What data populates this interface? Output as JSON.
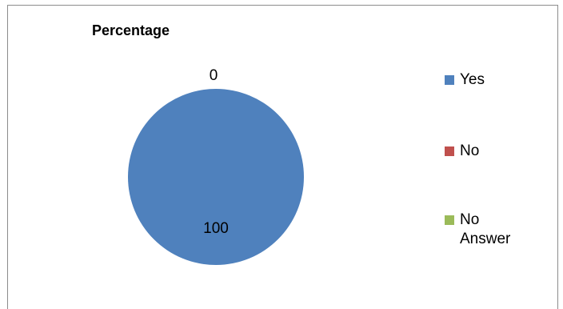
{
  "chart_data": {
    "type": "pie",
    "title": "Percentage",
    "categories": [
      "Yes",
      "No",
      "No Answer"
    ],
    "values": [
      100,
      0,
      0
    ],
    "colors": [
      "#4f81bd",
      "#c0504d",
      "#9bbb59"
    ],
    "data_labels": [
      "100",
      "0",
      "0"
    ],
    "legend": {
      "placement": "right",
      "entries": [
        "Yes",
        "No",
        "No Answer"
      ]
    }
  }
}
